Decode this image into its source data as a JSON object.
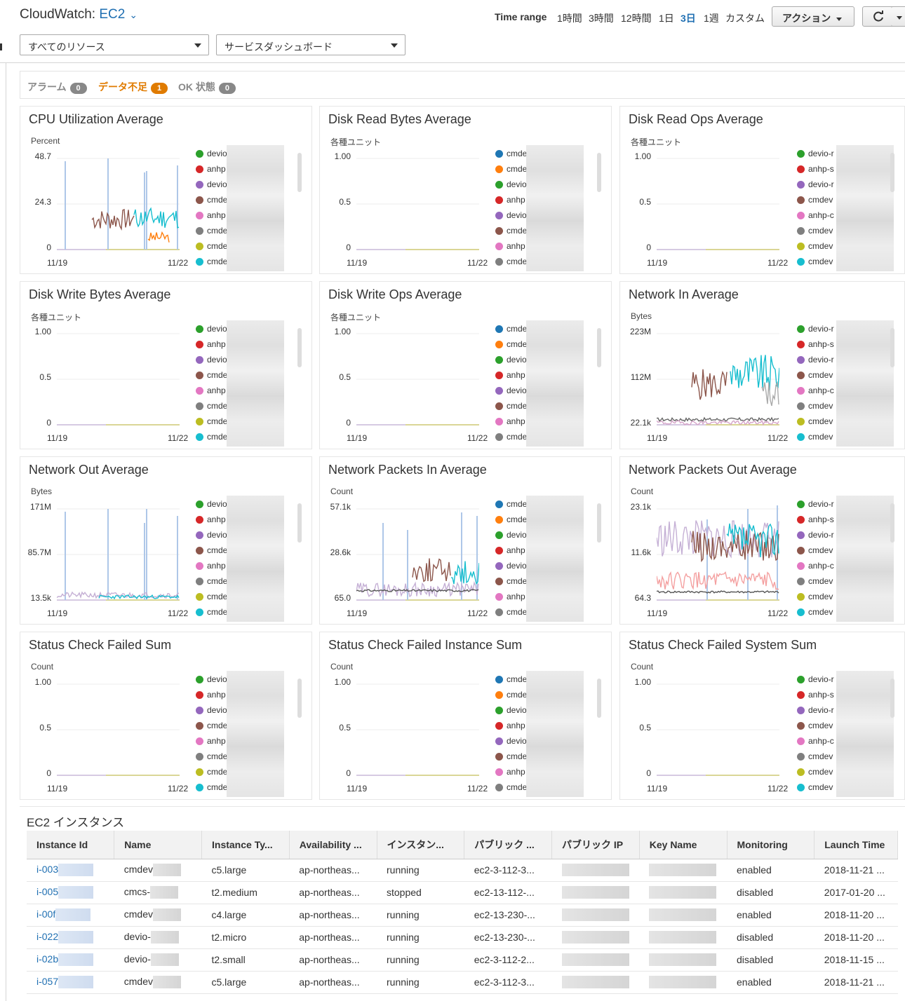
{
  "header": {
    "title_prefix": "CloudWatch: ",
    "title_service": "EC2",
    "resource_filter": "すべてのリソース",
    "dashboard_select": "サービスダッシュボード",
    "time_range_label": "Time range",
    "time_ranges": [
      "1時間",
      "3時間",
      "12時間",
      "1日",
      "3日",
      "1週",
      "カスタム"
    ],
    "active_time_range": "3日",
    "actions_label": "アクション"
  },
  "alarms": {
    "alarm_label": "アラーム",
    "alarm_count": "0",
    "insufficient_label": "データ不足",
    "insufficient_count": "1",
    "ok_label": "OK 状態",
    "ok_count": "0"
  },
  "colors": {
    "series": [
      "#2ca02c",
      "#d62728",
      "#9467bd",
      "#8c564b",
      "#e377c2",
      "#7f7f7f",
      "#bcbd22",
      "#17becf"
    ],
    "link": "#1f6fb2",
    "warning": "#e07b00"
  },
  "legend_prefixes_a": [
    "devio",
    "anhp",
    "devio",
    "cmde",
    "anhp",
    "cmde",
    "cmde",
    "cmde"
  ],
  "legend_prefixes_b": [
    "cmde",
    "cmde",
    "devio",
    "anhp",
    "devio",
    "cmde",
    "anhp",
    "cmde"
  ],
  "legend_prefixes_c": [
    "devio-r",
    "anhp-s",
    "devio-r",
    "cmdev",
    "anhp-c",
    "cmdev",
    "cmdev",
    "cmdev"
  ],
  "x_start": "11/19",
  "x_end": "11/22",
  "widgets": [
    {
      "title": "CPU Utilization Average",
      "unit": "Percent",
      "y": [
        "48.7",
        "24.3",
        "0"
      ]
    },
    {
      "title": "Disk Read Bytes Average",
      "unit": "各種ユニット",
      "y": [
        "1.00",
        "0.5",
        "0"
      ]
    },
    {
      "title": "Disk Read Ops Average",
      "unit": "各種ユニット",
      "y": [
        "1.00",
        "0.5",
        "0"
      ]
    },
    {
      "title": "Disk Write Bytes Average",
      "unit": "各種ユニット",
      "y": [
        "1.00",
        "0.5",
        "0"
      ]
    },
    {
      "title": "Disk Write Ops Average",
      "unit": "各種ユニット",
      "y": [
        "1.00",
        "0.5",
        "0"
      ]
    },
    {
      "title": "Network In Average",
      "unit": "Bytes",
      "y": [
        "223M",
        "112M",
        "22.1k"
      ]
    },
    {
      "title": "Network Out Average",
      "unit": "Bytes",
      "y": [
        "171M",
        "85.7M",
        "13.5k"
      ]
    },
    {
      "title": "Network Packets In Average",
      "unit": "Count",
      "y": [
        "57.1k",
        "28.6k",
        "65.0"
      ]
    },
    {
      "title": "Network Packets Out Average",
      "unit": "Count",
      "y": [
        "23.1k",
        "11.6k",
        "64.3"
      ]
    },
    {
      "title": "Status Check Failed Sum",
      "unit": "Count",
      "y": [
        "1.00",
        "0.5",
        "0"
      ]
    },
    {
      "title": "Status Check Failed Instance Sum",
      "unit": "Count",
      "y": [
        "1.00",
        "0.5",
        "0"
      ]
    },
    {
      "title": "Status Check Failed System Sum",
      "unit": "Count",
      "y": [
        "1.00",
        "0.5",
        "0"
      ]
    }
  ],
  "instances": {
    "title": "EC2 インスタンス",
    "columns": [
      "Instance Id",
      "Name",
      "Instance Ty...",
      "Availability ...",
      "インスタン...",
      "パブリック ...",
      "パブリック IP",
      "Key Name",
      "Monitoring",
      "Launch Time"
    ],
    "rows": [
      {
        "id": "i-003",
        "name": "cmdev",
        "type": "c5.large",
        "az": "ap-northeas...",
        "state": "running",
        "dns": "ec2-3-112-3...",
        "monitoring": "enabled",
        "launch": "2018-11-21 ..."
      },
      {
        "id": "i-005",
        "name": "cmcs-",
        "type": "t2.medium",
        "az": "ap-northeas...",
        "state": "stopped",
        "dns": "ec2-13-112-...",
        "monitoring": "disabled",
        "launch": "2017-01-20 ..."
      },
      {
        "id": "i-00f",
        "name": "cmdev",
        "type": "c4.large",
        "az": "ap-northeas...",
        "state": "running",
        "dns": "ec2-13-230-...",
        "monitoring": "enabled",
        "launch": "2018-11-20 ..."
      },
      {
        "id": "i-022",
        "name": "devio-",
        "type": "t2.micro",
        "az": "ap-northeas...",
        "state": "running",
        "dns": "ec2-13-230-...",
        "monitoring": "disabled",
        "launch": "2018-11-20 ..."
      },
      {
        "id": "i-02b",
        "name": "devio-",
        "type": "t2.small",
        "az": "ap-northeas...",
        "state": "running",
        "dns": "ec2-3-112-2...",
        "monitoring": "disabled",
        "launch": "2018-11-15 ..."
      },
      {
        "id": "i-057",
        "name": "cmdev",
        "type": "c5.large",
        "az": "ap-northeas...",
        "state": "running",
        "dns": "ec2-3-112-3...",
        "monitoring": "enabled",
        "launch": "2018-11-21 ..."
      }
    ]
  }
}
